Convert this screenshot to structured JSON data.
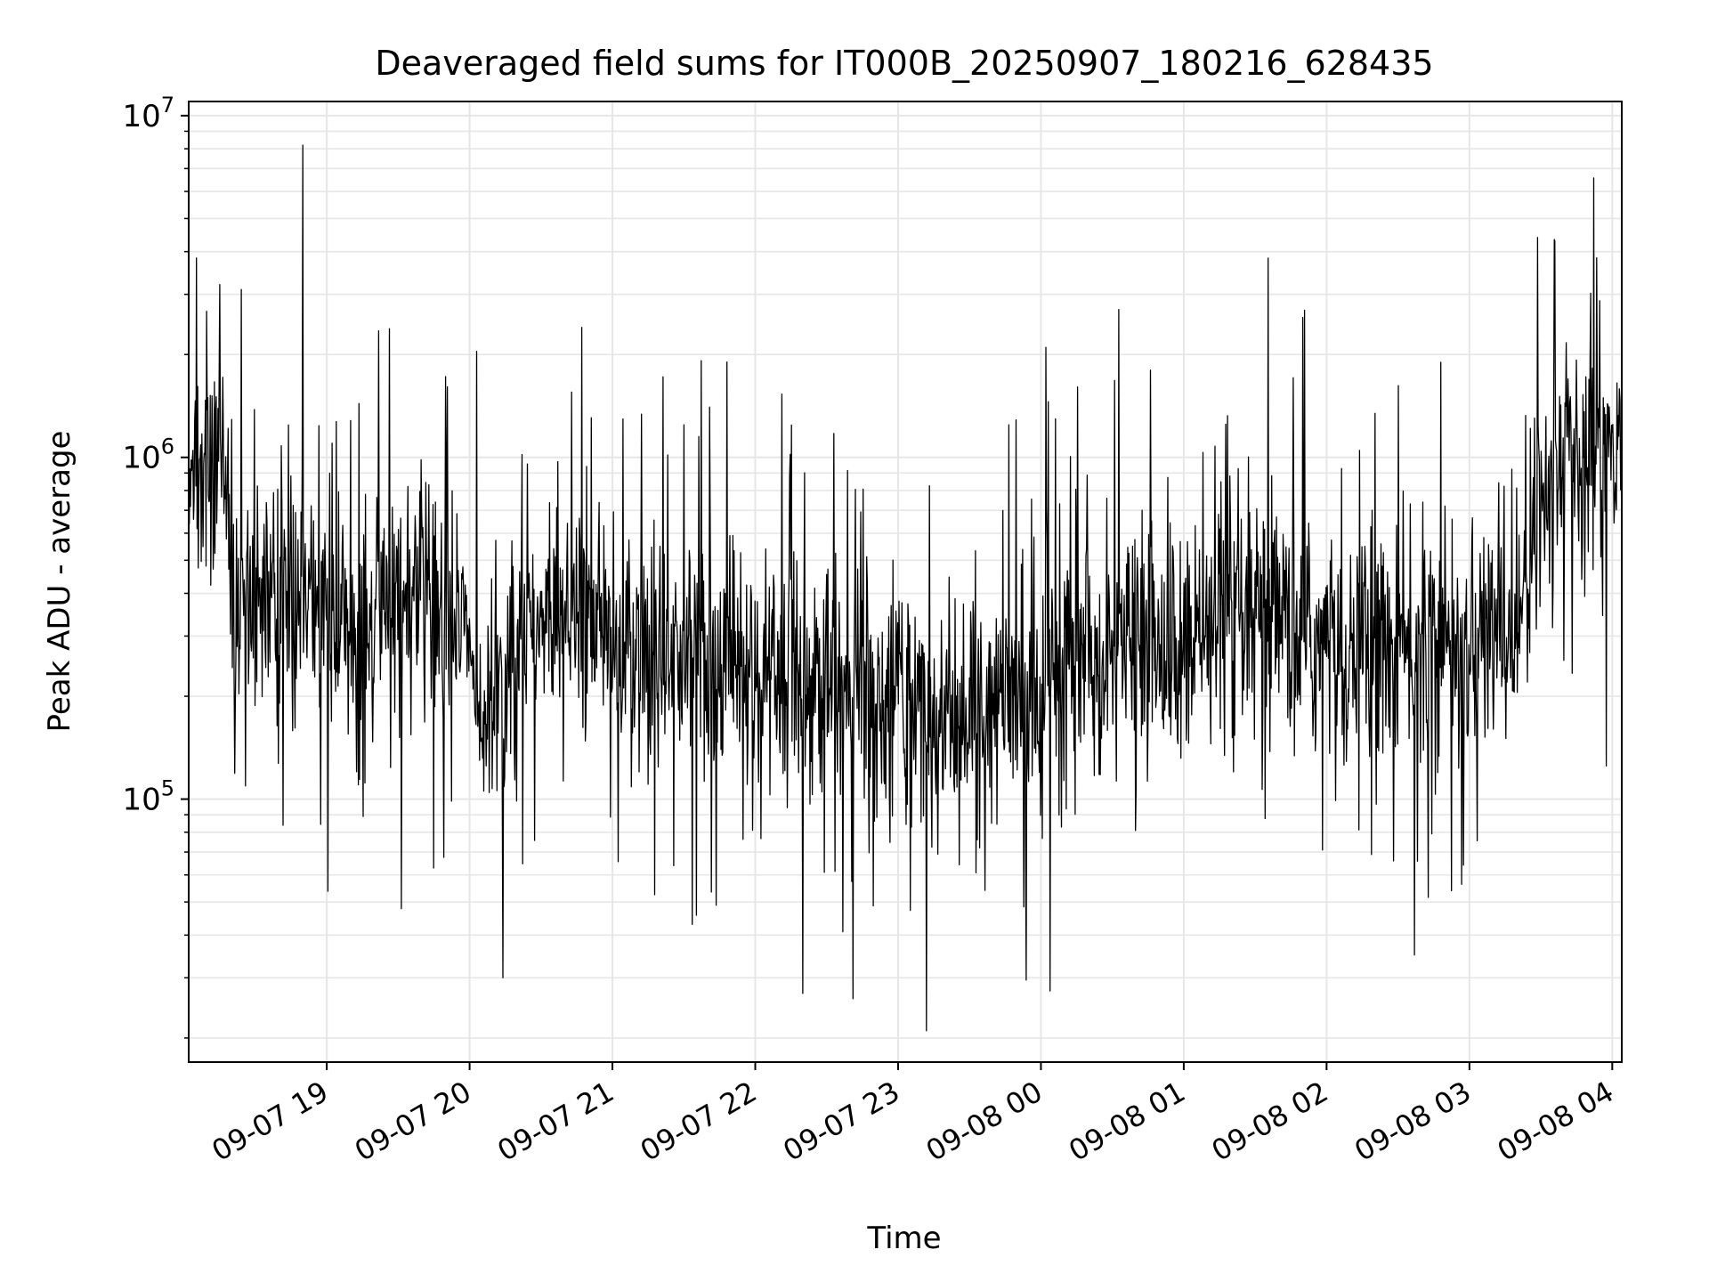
{
  "chart_data": {
    "type": "line",
    "title": "Deaveraged field sums for IT000B_20250907_180216_628435",
    "xlabel": "Time",
    "ylabel": "Peak ADU - average",
    "y_scale": "log",
    "ylim": [
      17000,
      11000000
    ],
    "xlim": [
      "2025-09-07 18:02",
      "2025-09-08 04:04"
    ],
    "x_ticks": [
      {
        "value": "2025-09-07 19:00",
        "label": "09-07 19"
      },
      {
        "value": "2025-09-07 20:00",
        "label": "09-07 20"
      },
      {
        "value": "2025-09-07 21:00",
        "label": "09-07 21"
      },
      {
        "value": "2025-09-07 22:00",
        "label": "09-07 22"
      },
      {
        "value": "2025-09-07 23:00",
        "label": "09-07 23"
      },
      {
        "value": "2025-09-08 00:00",
        "label": "09-08 00"
      },
      {
        "value": "2025-09-08 01:00",
        "label": "09-08 01"
      },
      {
        "value": "2025-09-08 02:00",
        "label": "09-08 02"
      },
      {
        "value": "2025-09-08 03:00",
        "label": "09-08 03"
      },
      {
        "value": "2025-09-08 04:00",
        "label": "09-08 04"
      }
    ],
    "y_ticks": [
      {
        "value": 100000,
        "base": "10",
        "exp": "5"
      },
      {
        "value": 1000000,
        "base": "10",
        "exp": "6"
      },
      {
        "value": 10000000,
        "base": "10",
        "exp": "7"
      }
    ],
    "grid": true,
    "legend": "none",
    "line_color": "#000000",
    "grid_color": "#e6e6e6",
    "series": [
      {
        "x": [
          "2025-09-07 18:02",
          "2025-09-07 18:10",
          "2025-09-07 18:18",
          "2025-09-07 18:20",
          "2025-09-07 18:22",
          "2025-09-07 18:30",
          "2025-09-07 18:40",
          "2025-09-07 18:49",
          "2025-09-07 18:50",
          "2025-09-07 19:00",
          "2025-09-07 19:10",
          "2025-09-07 19:30",
          "2025-09-07 19:45",
          "2025-09-07 20:00",
          "2025-09-07 20:05",
          "2025-09-07 20:15",
          "2025-09-07 20:30",
          "2025-09-07 20:40",
          "2025-09-07 21:00",
          "2025-09-07 21:30",
          "2025-09-07 22:00",
          "2025-09-07 22:20",
          "2025-09-07 22:30",
          "2025-09-07 23:00",
          "2025-09-07 23:15",
          "2025-09-07 23:30",
          "2025-09-08 00:00",
          "2025-09-08 00:15",
          "2025-09-08 00:30",
          "2025-09-08 01:00",
          "2025-09-08 01:20",
          "2025-09-08 01:40",
          "2025-09-08 02:00",
          "2025-09-08 02:30",
          "2025-09-08 03:00",
          "2025-09-08 03:20",
          "2025-09-08 03:40",
          "2025-09-08 04:04"
        ],
        "y": [
          700000,
          950000,
          1100000,
          400000,
          350000,
          380000,
          400000,
          420000,
          400000,
          350000,
          300000,
          380000,
          400000,
          330000,
          180000,
          200000,
          350000,
          400000,
          280000,
          260000,
          220000,
          230000,
          200000,
          190000,
          170000,
          180000,
          200000,
          260000,
          280000,
          270000,
          300000,
          320000,
          280000,
          270000,
          290000,
          320000,
          1200000,
          950000
        ]
      }
    ],
    "peaks": [
      {
        "x": "2025-09-07 18:24",
        "y": 3100000
      },
      {
        "x": "2025-09-07 18:50",
        "y": 8200000
      },
      {
        "x": "2025-09-07 20:14",
        "y": 30000
      },
      {
        "x": "2025-09-07 20:47",
        "y": 2400000
      },
      {
        "x": "2025-09-07 21:48",
        "y": 1900000
      },
      {
        "x": "2025-09-07 22:20",
        "y": 27000
      },
      {
        "x": "2025-09-07 23:12",
        "y": 21000
      },
      {
        "x": "2025-09-08 00:02",
        "y": 2100000
      },
      {
        "x": "2025-09-08 00:46",
        "y": 1800000
      },
      {
        "x": "2025-09-08 02:37",
        "y": 35000
      },
      {
        "x": "2025-09-08 03:36",
        "y": 4300000
      }
    ]
  }
}
